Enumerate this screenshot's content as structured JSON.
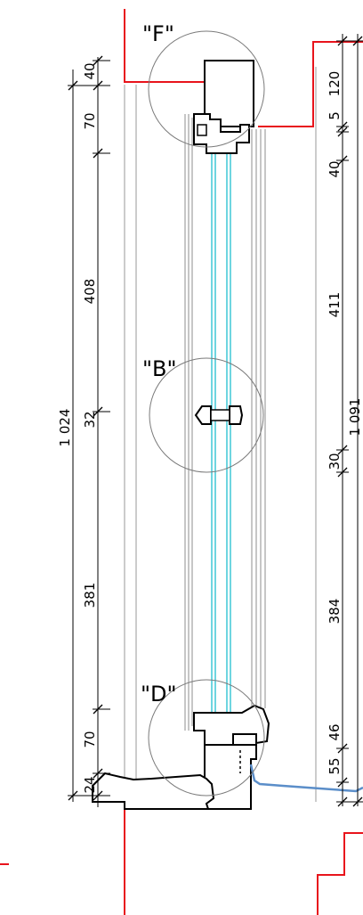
{
  "detail_labels": [
    "\"F\"",
    "\"B\"",
    "\"D\""
  ],
  "left_dimensions": {
    "overall": "1 024",
    "segments": [
      "40",
      "70",
      "408",
      "32",
      "381",
      "70",
      "24"
    ]
  },
  "right_dimensions": {
    "overall": "1 091",
    "segments": [
      "120",
      "5",
      "40",
      "411",
      "30",
      "384",
      "46",
      "55"
    ]
  },
  "colors": {
    "outline": "#000000",
    "glass": "#3fc7d6",
    "opening": "#e8141c",
    "membrane": "#5b8ec9",
    "detail_circle": "#7a7a7a",
    "guide": "#9a9a9a"
  }
}
